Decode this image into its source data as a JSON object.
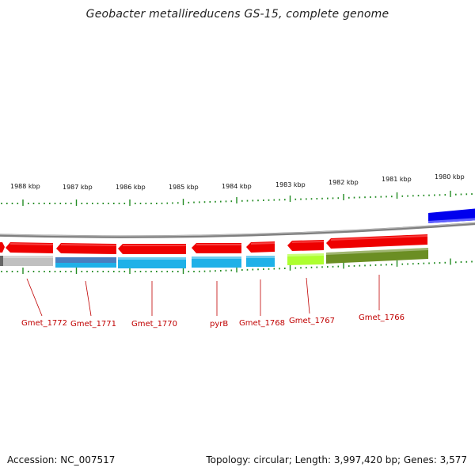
{
  "title": "Geobacter metallireducens GS-15, complete genome",
  "footer": {
    "accession": "Accession: NC_007517",
    "summary": "Topology: circular; Length: 3,997,420 bp; Genes: 3,577"
  },
  "colors": {
    "forward_gene": "#ee0000",
    "cds_blue": "#1fb1e8",
    "cds_steel": "#4a7fbf",
    "cds_gray": "#bcbcbc",
    "cds_lime": "#adff2f",
    "cds_olive": "#6b8e23",
    "reverse_gene": "#0000ee",
    "tick": "#228b22",
    "backbone": "#7a7a7a",
    "label": "#c00000"
  },
  "kbp_ticks": [
    "1988 kbp",
    "1987 kbp",
    "1986 kbp",
    "1985 kbp",
    "1984 kbp",
    "1983 kbp",
    "1982 kbp",
    "1981 kbp",
    "1980 kbp"
  ],
  "genes": [
    "Gmet_1772",
    "Gmet_1771",
    "Gmet_1770",
    "pyrB",
    "Gmet_1768",
    "Gmet_1767",
    "Gmet_1766"
  ]
}
